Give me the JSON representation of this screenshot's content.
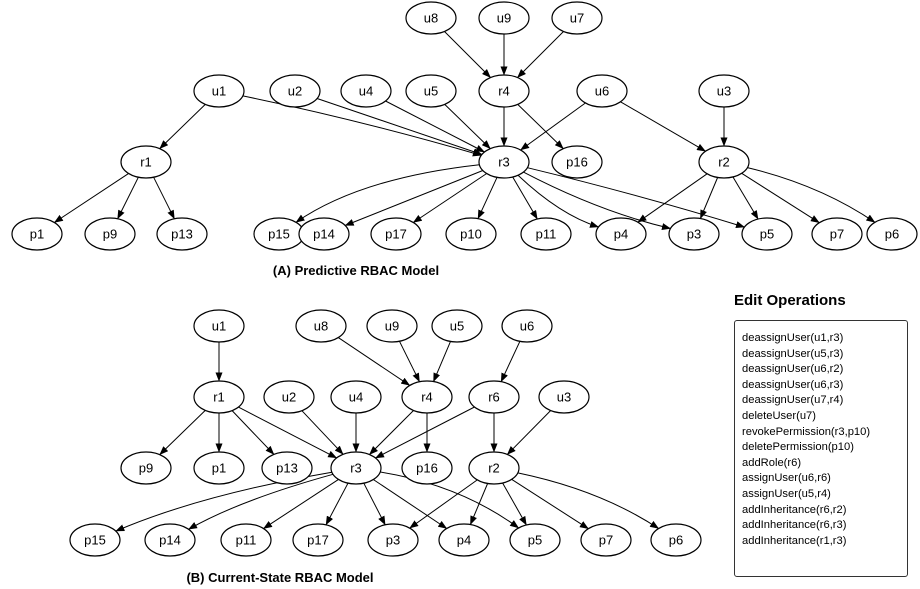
{
  "diagram_a": {
    "caption": "(A) Predictive RBAC Model",
    "nodes": [
      {
        "id": "u8",
        "label": "u8"
      },
      {
        "id": "u9",
        "label": "u9"
      },
      {
        "id": "u7",
        "label": "u7"
      },
      {
        "id": "u1",
        "label": "u1"
      },
      {
        "id": "u2",
        "label": "u2"
      },
      {
        "id": "u4",
        "label": "u4"
      },
      {
        "id": "u5",
        "label": "u5"
      },
      {
        "id": "r4",
        "label": "r4"
      },
      {
        "id": "u6",
        "label": "u6"
      },
      {
        "id": "u3",
        "label": "u3"
      },
      {
        "id": "r1",
        "label": "r1"
      },
      {
        "id": "r3",
        "label": "r3"
      },
      {
        "id": "p16",
        "label": "p16"
      },
      {
        "id": "r2",
        "label": "r2"
      },
      {
        "id": "p1",
        "label": "p1"
      },
      {
        "id": "p9",
        "label": "p9"
      },
      {
        "id": "p13",
        "label": "p13"
      },
      {
        "id": "p15",
        "label": "p15"
      },
      {
        "id": "p14",
        "label": "p14"
      },
      {
        "id": "p17",
        "label": "p17"
      },
      {
        "id": "p10",
        "label": "p10"
      },
      {
        "id": "p11",
        "label": "p11"
      },
      {
        "id": "p4",
        "label": "p4"
      },
      {
        "id": "p3",
        "label": "p3"
      },
      {
        "id": "p5",
        "label": "p5"
      },
      {
        "id": "p7",
        "label": "p7"
      },
      {
        "id": "p6",
        "label": "p6"
      }
    ],
    "edges": [
      [
        "u8",
        "r4"
      ],
      [
        "u9",
        "r4"
      ],
      [
        "u7",
        "r4"
      ],
      [
        "u1",
        "r1"
      ],
      [
        "u1",
        "r3"
      ],
      [
        "u2",
        "r3"
      ],
      [
        "u4",
        "r3"
      ],
      [
        "u5",
        "r3"
      ],
      [
        "r4",
        "r3"
      ],
      [
        "r4",
        "p16"
      ],
      [
        "u6",
        "r3"
      ],
      [
        "u6",
        "r2"
      ],
      [
        "u3",
        "r2"
      ],
      [
        "r1",
        "p1"
      ],
      [
        "r1",
        "p9"
      ],
      [
        "r1",
        "p13"
      ],
      [
        "r3",
        "p15"
      ],
      [
        "r3",
        "p14"
      ],
      [
        "r3",
        "p17"
      ],
      [
        "r3",
        "p10"
      ],
      [
        "r3",
        "p11"
      ],
      [
        "r3",
        "p4"
      ],
      [
        "r3",
        "p3"
      ],
      [
        "r3",
        "p5"
      ],
      [
        "r2",
        "p4"
      ],
      [
        "r2",
        "p3"
      ],
      [
        "r2",
        "p5"
      ],
      [
        "r2",
        "p7"
      ],
      [
        "r2",
        "p6"
      ]
    ]
  },
  "diagram_b": {
    "caption": "(B) Current-State RBAC Model",
    "nodes": [
      {
        "id": "u1",
        "label": "u1"
      },
      {
        "id": "u8",
        "label": "u8"
      },
      {
        "id": "u9",
        "label": "u9"
      },
      {
        "id": "u5",
        "label": "u5"
      },
      {
        "id": "u6",
        "label": "u6"
      },
      {
        "id": "r1",
        "label": "r1"
      },
      {
        "id": "u2",
        "label": "u2"
      },
      {
        "id": "u4",
        "label": "u4"
      },
      {
        "id": "r4",
        "label": "r4"
      },
      {
        "id": "r6",
        "label": "r6"
      },
      {
        "id": "u3",
        "label": "u3"
      },
      {
        "id": "p9",
        "label": "p9"
      },
      {
        "id": "p1",
        "label": "p1"
      },
      {
        "id": "p13",
        "label": "p13"
      },
      {
        "id": "r3",
        "label": "r3"
      },
      {
        "id": "p16",
        "label": "p16"
      },
      {
        "id": "r2",
        "label": "r2"
      },
      {
        "id": "p15",
        "label": "p15"
      },
      {
        "id": "p14",
        "label": "p14"
      },
      {
        "id": "p11",
        "label": "p11"
      },
      {
        "id": "p17",
        "label": "p17"
      },
      {
        "id": "p3",
        "label": "p3"
      },
      {
        "id": "p4",
        "label": "p4"
      },
      {
        "id": "p5",
        "label": "p5"
      },
      {
        "id": "p7",
        "label": "p7"
      },
      {
        "id": "p6",
        "label": "p6"
      }
    ],
    "edges": [
      [
        "u1",
        "r1"
      ],
      [
        "u8",
        "r4"
      ],
      [
        "u9",
        "r4"
      ],
      [
        "u5",
        "r4"
      ],
      [
        "u6",
        "r6"
      ],
      [
        "r1",
        "p9"
      ],
      [
        "r1",
        "p1"
      ],
      [
        "r1",
        "p13"
      ],
      [
        "r1",
        "r3"
      ],
      [
        "u2",
        "r3"
      ],
      [
        "u4",
        "r3"
      ],
      [
        "r4",
        "r3"
      ],
      [
        "r4",
        "p16"
      ],
      [
        "r6",
        "r3"
      ],
      [
        "r6",
        "r2"
      ],
      [
        "u3",
        "r2"
      ],
      [
        "r3",
        "p15"
      ],
      [
        "r3",
        "p14"
      ],
      [
        "r3",
        "p11"
      ],
      [
        "r3",
        "p17"
      ],
      [
        "r3",
        "p3"
      ],
      [
        "r3",
        "p4"
      ],
      [
        "r3",
        "p5"
      ],
      [
        "r2",
        "p3"
      ],
      [
        "r2",
        "p4"
      ],
      [
        "r2",
        "p5"
      ],
      [
        "r2",
        "p7"
      ],
      [
        "r2",
        "p6"
      ]
    ]
  },
  "edit_operations": {
    "title": "Edit Operations",
    "items": [
      "deassignUser(u1,r3)",
      "deassignUser(u5,r3)",
      "deassignUser(u6,r2)",
      "deassignUser(u6,r3)",
      "deassignUser(u7,r4)",
      "deleteUser(u7)",
      "revokePermission(r3,p10)",
      "deletePermission(p10)",
      "addRole(r6)",
      "assignUser(u6,r6)",
      "assignUser(u5,r4)",
      "addInheritance(r6,r2)",
      "addInheritance(r6,r3)",
      "addInheritance(r1,r3)"
    ]
  }
}
